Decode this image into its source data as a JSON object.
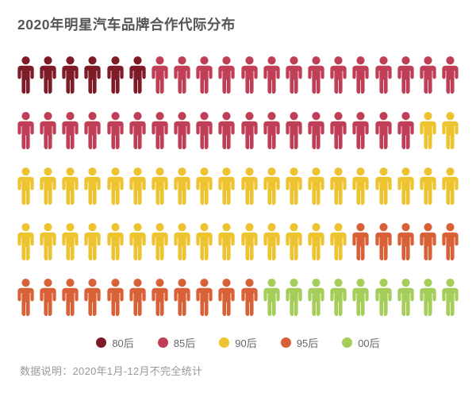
{
  "header": {
    "title": "2020年明星汽车品牌合作代际分布"
  },
  "legend": {
    "items": [
      {
        "label": "80后",
        "color": "#7e1b27"
      },
      {
        "label": "85后",
        "color": "#c03e56"
      },
      {
        "label": "90后",
        "color": "#edc32f"
      },
      {
        "label": "95后",
        "color": "#d96138"
      },
      {
        "label": "00后",
        "color": "#a4cd5a"
      }
    ]
  },
  "footer": {
    "note_label": "数据说明：",
    "note_text": "2020年1月-12月不完全统计"
  },
  "icons": {
    "person": "person-pictogram",
    "legend_marker": "filled-circle"
  },
  "chart_data": {
    "type": "pictogram",
    "title": "2020年明星汽车品牌合作代际分布",
    "categories": [
      "80后",
      "85后",
      "90后",
      "95后",
      "00后"
    ],
    "values": [
      6,
      32,
      37,
      16,
      9
    ],
    "colors": [
      "#7e1b27",
      "#c03e56",
      "#edc32f",
      "#d96138",
      "#a4cd5a"
    ],
    "total_icons": 100,
    "icons_per_row": 20,
    "rows": 5,
    "fill_order": "left-to-right, top-to-bottom",
    "legend_position": "bottom-center",
    "annotation": "数据说明： 2020年1月-12月不完全统计"
  }
}
